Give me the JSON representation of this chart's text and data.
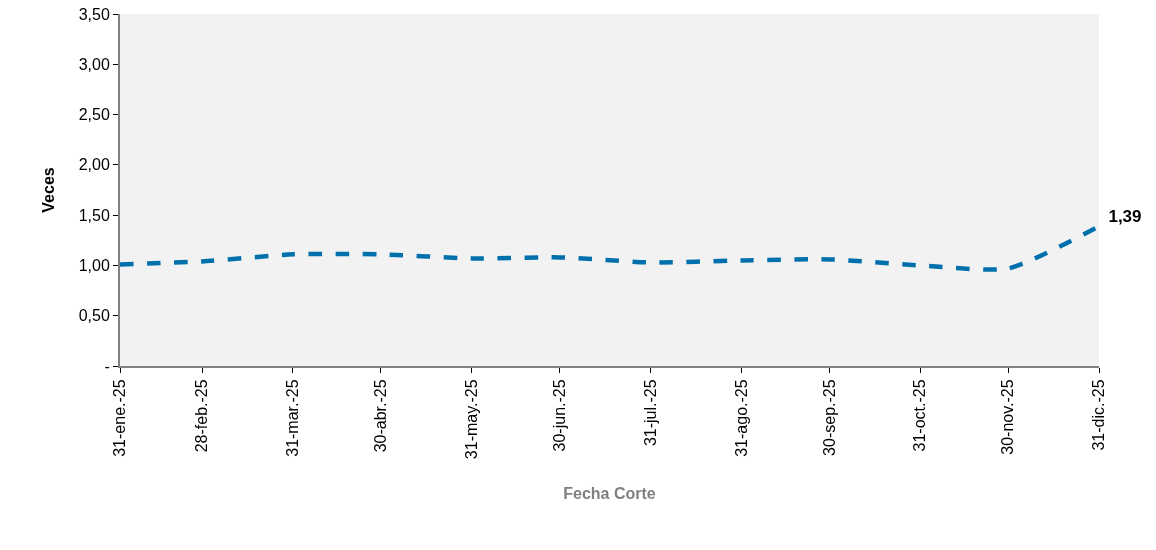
{
  "chart_data": {
    "type": "line",
    "xlabel": "Fecha Corte",
    "ylabel": "Veces",
    "x": [
      "2025-01-31",
      "2025-02-28",
      "2025-03-31",
      "2025-04-30",
      "2025-05-31",
      "2025-06-30",
      "2025-07-31",
      "2025-08-31",
      "2025-09-30",
      "2025-10-31",
      "2025-11-30",
      "2025-12-31"
    ],
    "series": [
      {
        "color": "#0070ad",
        "values": [
          1.01,
          1.04,
          1.11,
          1.11,
          1.07,
          1.08,
          1.03,
          1.05,
          1.06,
          1.0,
          0.97,
          1.39
        ],
        "value_labels": [
          null,
          null,
          null,
          null,
          null,
          null,
          null,
          null,
          null,
          null,
          null,
          "1,39"
        ]
      }
    ],
    "xlim": [
      "2025-01-31",
      "2025-12-31"
    ],
    "xticks": [
      {
        "value": "2025-01-31",
        "label": "31-ene.-25"
      },
      {
        "value": "2025-02-28",
        "label": "28-feb.-25"
      },
      {
        "value": "2025-03-31",
        "label": "31-mar.-25"
      },
      {
        "value": "2025-04-30",
        "label": "30-abr.-25"
      },
      {
        "value": "2025-05-31",
        "label": "31-may.-25"
      },
      {
        "value": "2025-06-30",
        "label": "30-jun.-25"
      },
      {
        "value": "2025-07-31",
        "label": "31-jul.-25"
      },
      {
        "value": "2025-08-31",
        "label": "31-ago.-25"
      },
      {
        "value": "2025-09-30",
        "label": "30-sep.-25"
      },
      {
        "value": "2025-10-31",
        "label": "31-oct.-25"
      },
      {
        "value": "2025-11-30",
        "label": "30-nov.-25"
      },
      {
        "value": "2025-12-31",
        "label": "31-dic.-25"
      }
    ],
    "ylim": [
      0,
      3.5
    ],
    "yticks": [
      {
        "value": 0,
        "label": "-"
      },
      {
        "value": 0.5,
        "label": "0,50"
      },
      {
        "value": 1,
        "label": "1,00"
      },
      {
        "value": 1.5,
        "label": "1,50"
      },
      {
        "value": 2,
        "label": "2,00"
      },
      {
        "value": 2.5,
        "label": "2,50"
      },
      {
        "value": 3,
        "label": "3,00"
      },
      {
        "value": 3.5,
        "label": "3,50"
      }
    ],
    "marker": "none",
    "line_style": "dashed"
  }
}
